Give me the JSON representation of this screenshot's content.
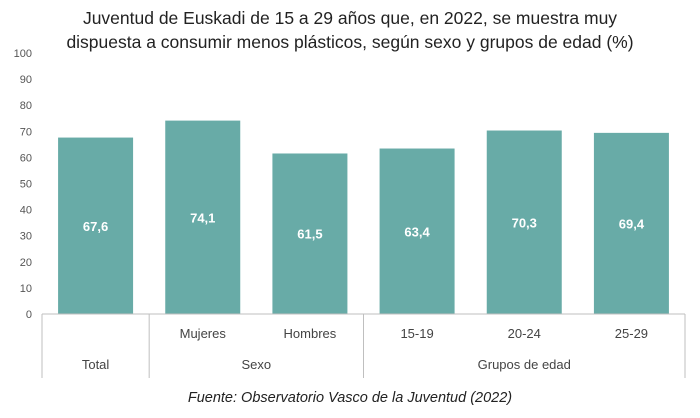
{
  "chart_data": {
    "type": "bar",
    "title_line1": "Juventud de Euskadi de 15 a 29 años que, en 2022, se muestra muy",
    "title_line2": "dispuesta a consumir menos plásticos, según sexo y grupos de edad (%)",
    "source": "Fuente: Observatorio Vasco de la Juventud (2022)",
    "ylim": [
      0,
      100
    ],
    "yticks": [
      0,
      10,
      20,
      30,
      40,
      50,
      60,
      70,
      80,
      90,
      100
    ],
    "grid": false,
    "bar_color": "#68ABA7",
    "categories": [
      "",
      "Mujeres",
      "Hombres",
      "15-19",
      "20-24",
      "25-29"
    ],
    "values": [
      67.6,
      74.1,
      61.5,
      63.4,
      70.3,
      69.4
    ],
    "data_labels": [
      "67,6",
      "74,1",
      "61,5",
      "63,4",
      "70,3",
      "69,4"
    ],
    "groups": [
      {
        "label": "Total",
        "span": 1
      },
      {
        "label": "Sexo",
        "span": 2
      },
      {
        "label": "Grupos de edad",
        "span": 3
      }
    ]
  }
}
